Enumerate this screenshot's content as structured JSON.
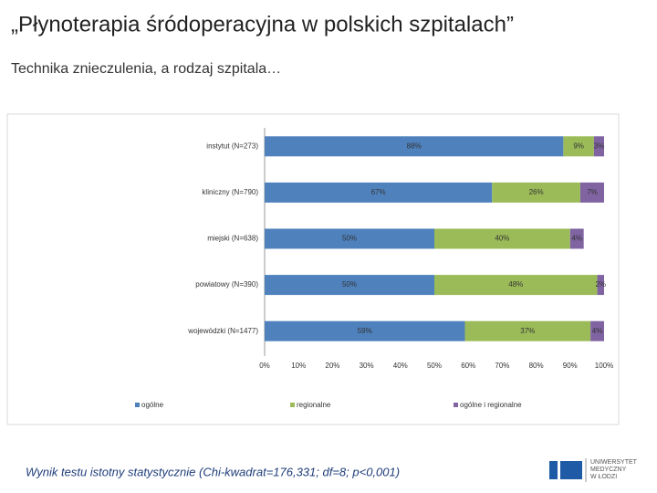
{
  "slide": {
    "title": "„Płynoterapia śródoperacyjna w polskich szpitalach”",
    "subtitle": "Technika znieczulenia, a rodzaj szpitala…",
    "footer": "Wynik testu istotny statystycznie (Chi-kwadrat=176,331; df=8; p<0,001)",
    "logo": [
      "UNIWERSYTET",
      "MEDYCZNY",
      "W ŁODZI"
    ]
  },
  "chart_data": {
    "type": "stacked_barh",
    "categories": [
      "instytut (N=273)",
      "kliniczny (N=790)",
      "miejski (N=638)",
      "powiatowy (N=390)",
      "wojewódzki (N=1477)"
    ],
    "series": [
      {
        "name": "ogólne",
        "color": "#4f81bd",
        "values": [
          88,
          67,
          50,
          50,
          59
        ],
        "value_labels": [
          "88%",
          "67%",
          "50%",
          "50%",
          "59%"
        ]
      },
      {
        "name": "regionalne",
        "color": "#9bbb59",
        "values": [
          9,
          26,
          40,
          48,
          37
        ],
        "value_labels": [
          "9%",
          "26%",
          "40%",
          "48%",
          "37%"
        ]
      },
      {
        "name": "ogólne i regionalne",
        "color": "#8064a2",
        "values": [
          3,
          7,
          4,
          2,
          4
        ],
        "value_labels": [
          "3%",
          "7%",
          "4%",
          "2%",
          "4%"
        ]
      }
    ],
    "xlim": [
      0,
      100
    ],
    "xticks": [
      {
        "value": 0,
        "label": "0%"
      },
      {
        "value": 10,
        "label": "10%"
      },
      {
        "value": 20,
        "label": "20%"
      },
      {
        "value": 30,
        "label": "30%"
      },
      {
        "value": 40,
        "label": "40%"
      },
      {
        "value": 50,
        "label": "50%"
      },
      {
        "value": 60,
        "label": "60%"
      },
      {
        "value": 70,
        "label": "70%"
      },
      {
        "value": 80,
        "label": "80%"
      },
      {
        "value": 90,
        "label": "90%"
      },
      {
        "value": 100,
        "label": "100%"
      }
    ],
    "legend": "bottom"
  }
}
